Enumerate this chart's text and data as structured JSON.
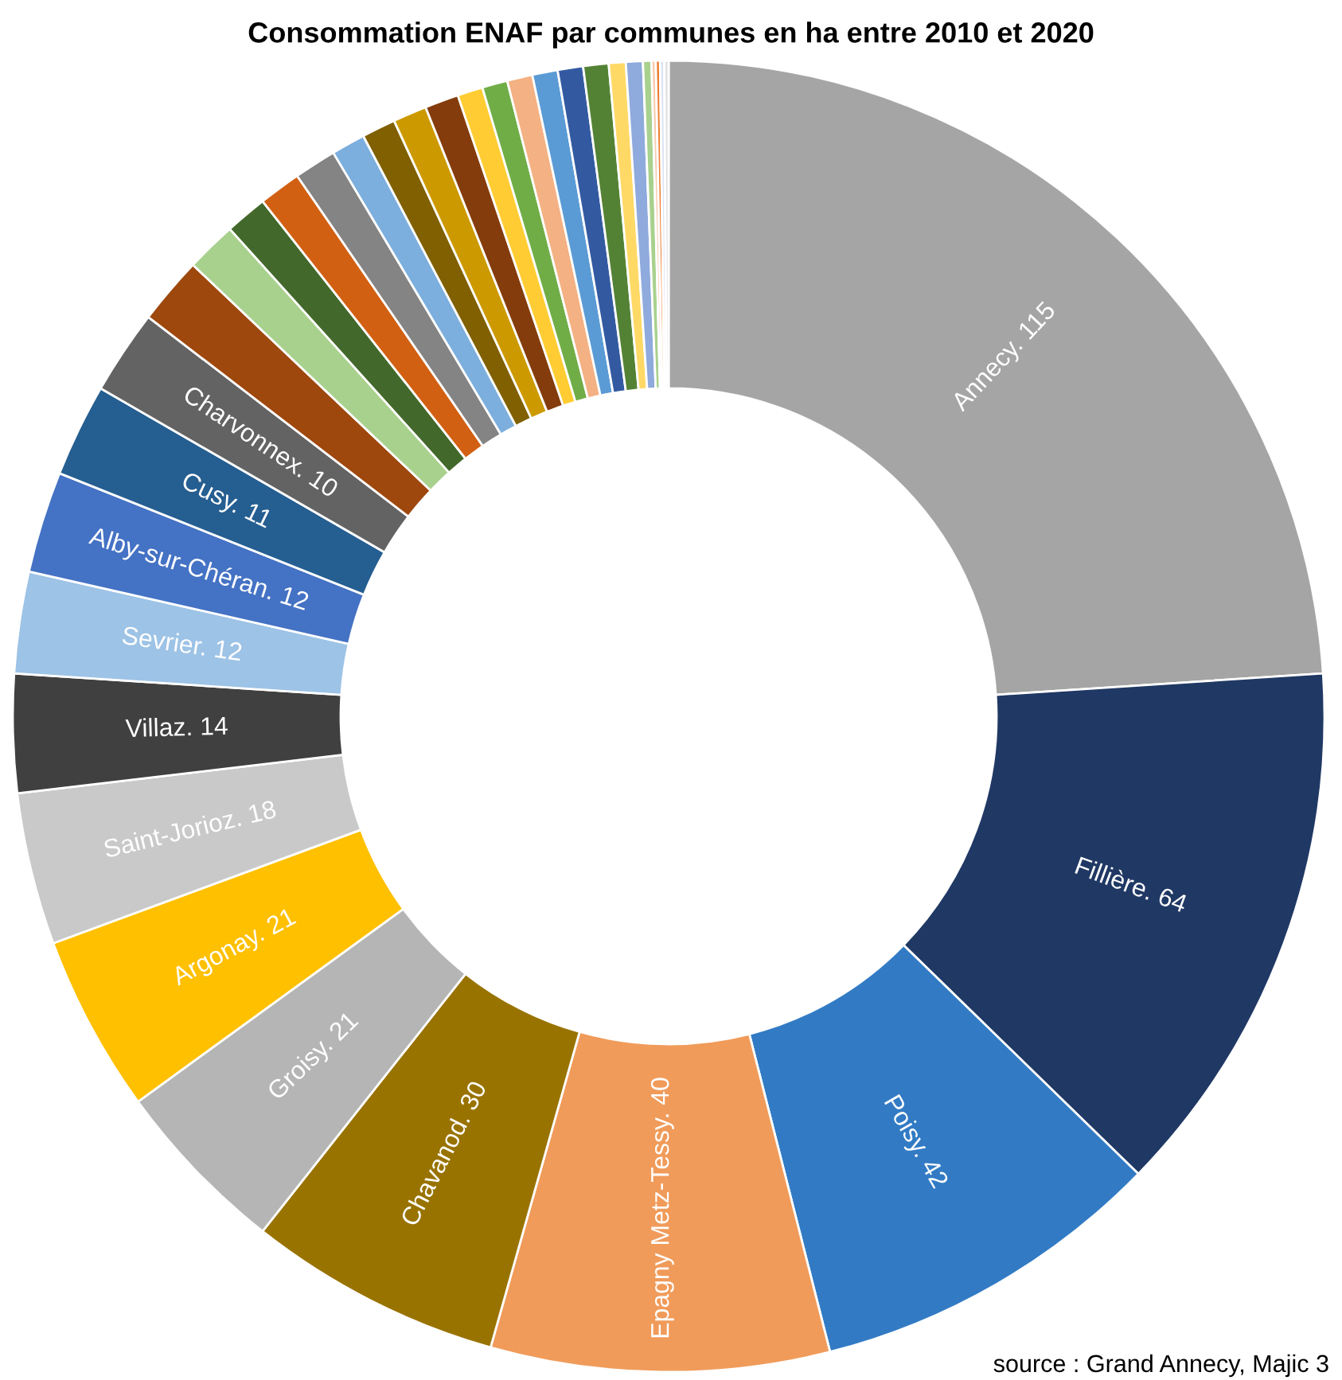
{
  "chart_data": {
    "type": "donut",
    "title": "Consommation ENAF par communes en ha entre 2010 et 2020",
    "categories": [
      "Annecy. 115",
      "Fillière. 64",
      "Poisy. 42",
      "Epagny Metz-Tessy. 40",
      "Chavanod. 30",
      "Groisy. 21",
      "Argonay. 21",
      "Saint-Jorioz. 18",
      "Villaz. 14",
      "Sevrier. 12",
      "Alby-sur-Chéran. 12",
      "Cusy. 11",
      "Charvonnex. 10",
      null,
      null,
      null,
      null,
      null,
      null,
      null,
      null,
      null,
      null,
      null,
      null,
      null,
      null,
      null,
      null,
      null,
      null,
      null,
      null,
      null,
      null
    ],
    "values": [
      115,
      64,
      42,
      40,
      30,
      21,
      21,
      18,
      14,
      12,
      12,
      11,
      10,
      8,
      6,
      5,
      5,
      5,
      4,
      4,
      4,
      4,
      3,
      3,
      3,
      3,
      3,
      3,
      2,
      2,
      1,
      0.5,
      0.5,
      0.5,
      0.5
    ],
    "colors": [
      "#a5a5a5",
      "#203864",
      "#327bc4",
      "#f09b5a",
      "#997300",
      "#b5b5b5",
      "#ffc000",
      "#c9c9c9",
      "#404040",
      "#9dc3e6",
      "#4472c4",
      "#255e91",
      "#636363",
      "#9e480e",
      "#a9d18e",
      "#43682b",
      "#d26012",
      "#848484",
      "#7cafdd",
      "#806000",
      "#cc9a00",
      "#843c0c",
      "#ffcd33",
      "#70ad47",
      "#f4b183",
      "#5b9bd5",
      "#335aa1",
      "#548235",
      "#ffd966",
      "#8faadc",
      "#a9d18e",
      "#f8cbad",
      "#ed7d31",
      "#dae3f3",
      "#e0e0e0"
    ],
    "legend": false,
    "annotations": [
      "source : Grand Annecy, Majic 3"
    ]
  }
}
